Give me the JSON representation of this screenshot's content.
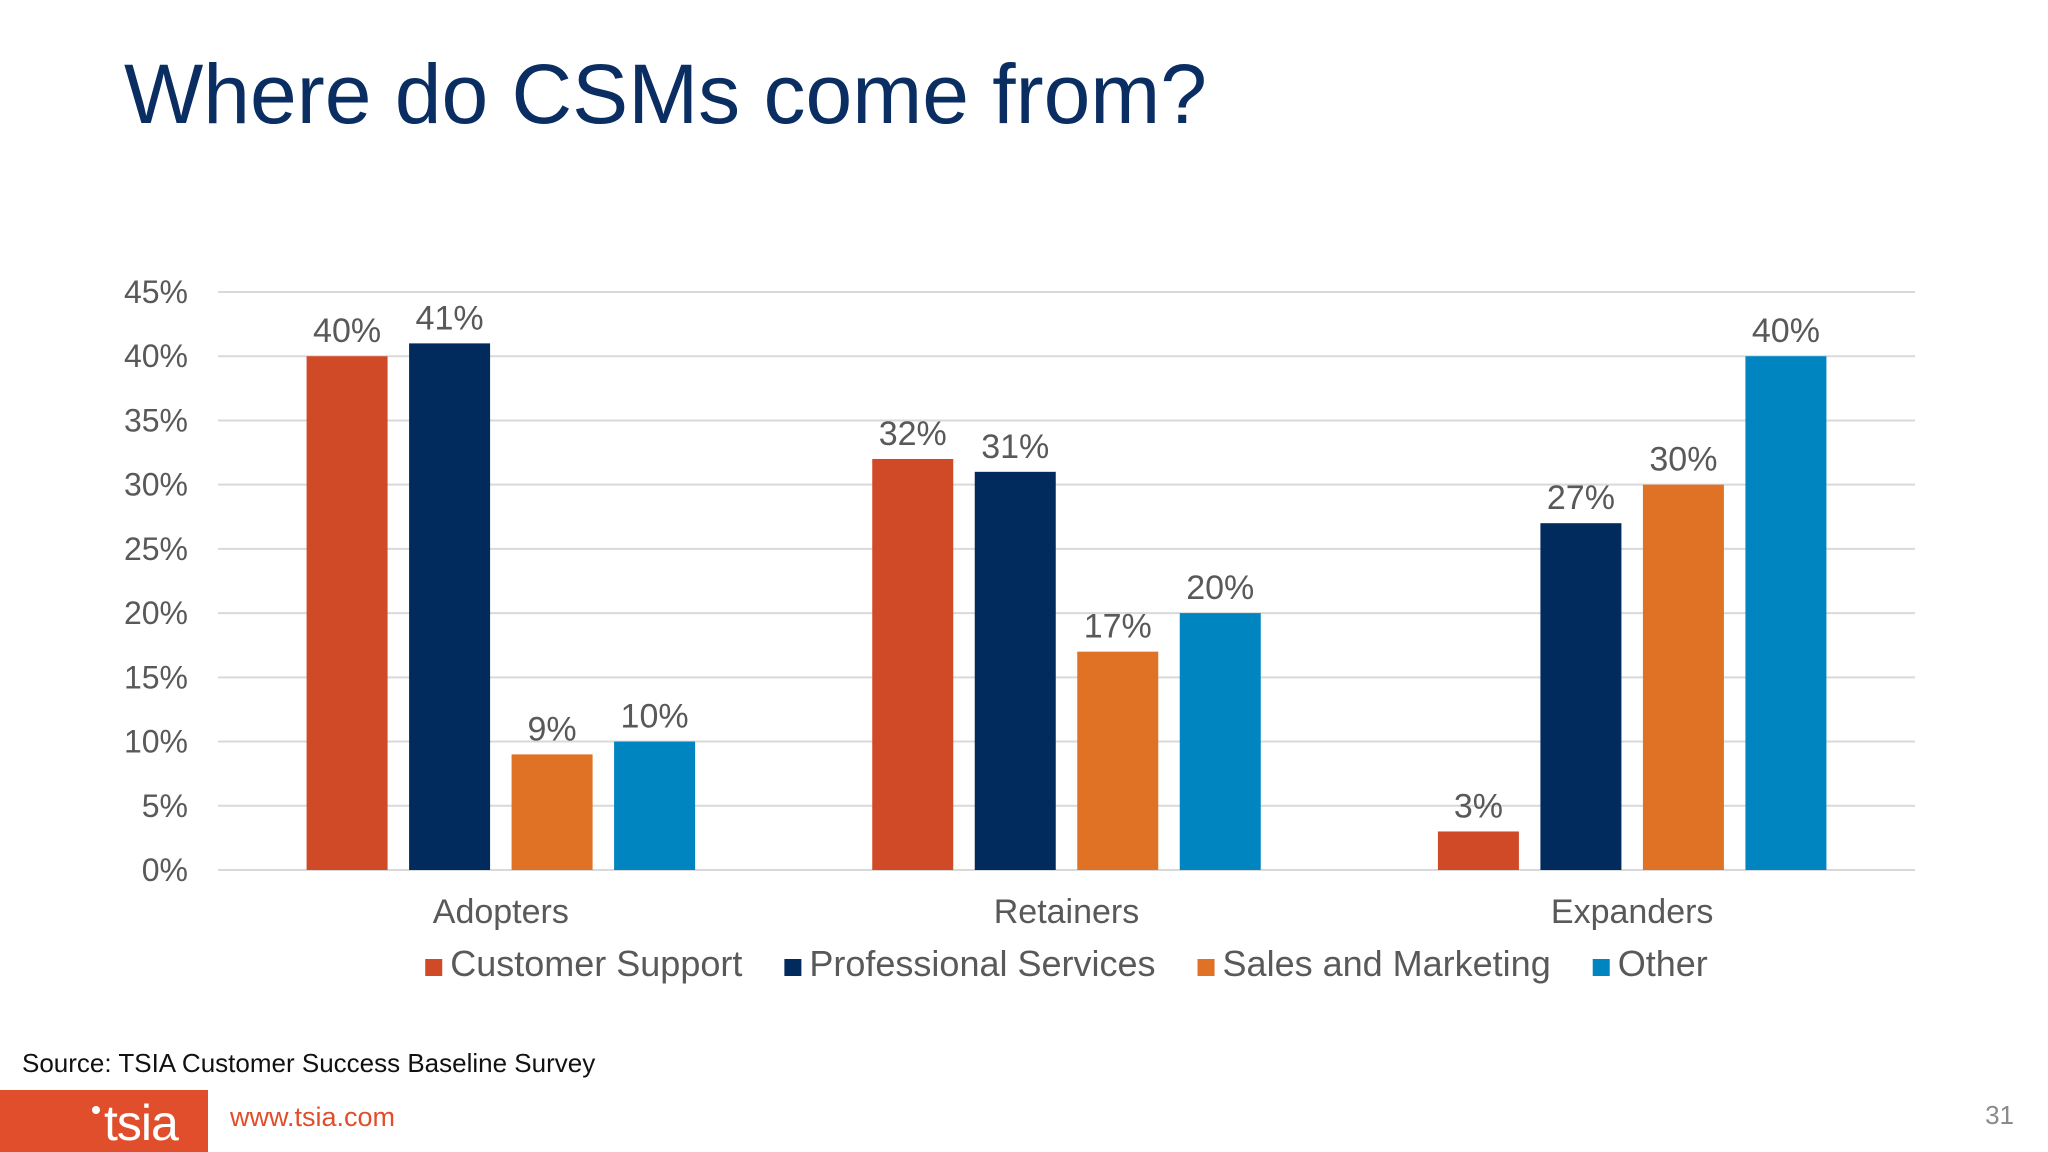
{
  "slide": {
    "title": "Where do CSMs come from?",
    "source": "Source: TSIA Customer Success Baseline Survey",
    "footer_url": "www.tsia.com",
    "logo_text": "tsia",
    "page_number": "31"
  },
  "colors": {
    "title": "#0a2d62",
    "brand": "#e04e2b",
    "grid": "#d9d9d9",
    "axis_text": "#595959"
  },
  "chart_data": {
    "type": "bar",
    "title": "",
    "xlabel": "",
    "ylabel": "",
    "categories": [
      "Adopters",
      "Retainers",
      "Expanders"
    ],
    "series": [
      {
        "name": "Customer Support",
        "color": "#d04a28",
        "values": [
          40,
          32,
          3
        ],
        "labels": [
          "40%",
          "32%",
          "3%"
        ]
      },
      {
        "name": "Professional Services",
        "color": "#002b5c",
        "values": [
          41,
          31,
          27
        ],
        "labels": [
          "41%",
          "31%",
          "27%"
        ]
      },
      {
        "name": "Sales and Marketing",
        "color": "#e07226",
        "values": [
          9,
          17,
          30
        ],
        "labels": [
          "9%",
          "17%",
          "30%"
        ]
      },
      {
        "name": "Other",
        "color": "#0085c0",
        "values": [
          10,
          20,
          40
        ],
        "labels": [
          "10%",
          "20%",
          "40%"
        ]
      }
    ],
    "ylim": [
      0,
      45
    ],
    "ytick_values": [
      0,
      5,
      10,
      15,
      20,
      25,
      30,
      35,
      40,
      45
    ],
    "ytick_labels": [
      "0%",
      "5%",
      "10%",
      "15%",
      "20%",
      "25%",
      "30%",
      "35%",
      "40%",
      "45%"
    ],
    "grid": true,
    "legend_position": "bottom"
  }
}
